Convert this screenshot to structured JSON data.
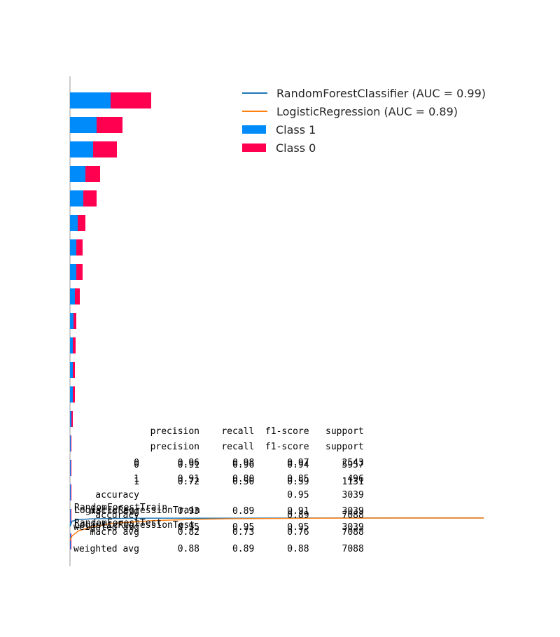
{
  "chart_data": [
    {
      "type": "bar",
      "orientation": "horizontal",
      "stacked": true,
      "series": [
        {
          "name": "Class 1",
          "color": "#008bfb",
          "values": [
            5.8,
            3.8,
            3.3,
            2.2,
            1.9,
            1.1,
            0.9,
            0.9,
            0.7,
            0.5,
            0.4,
            0.4,
            0.4,
            0.2,
            0.1,
            0.1,
            0.1,
            0.1,
            0.1
          ]
        },
        {
          "name": "Class 0",
          "color": "#ff0051",
          "values": [
            5.8,
            3.7,
            3.4,
            2.1,
            1.9,
            1.1,
            0.9,
            0.9,
            0.7,
            0.4,
            0.4,
            0.3,
            0.3,
            0.2,
            0.1,
            0.1,
            0.1,
            0.1,
            0.1
          ]
        }
      ]
    },
    {
      "type": "line",
      "series": [
        {
          "name": "RandomForestClassifier (AUC = 0.99)",
          "color": "#1f77b4",
          "x": [
            0,
            0.005,
            0.02,
            0.05,
            0.1,
            0.2,
            0.4,
            0.6,
            0.8,
            1.0
          ],
          "y": [
            0.62,
            0.86,
            0.93,
            0.96,
            0.98,
            0.99,
            0.995,
            1.0,
            1.0,
            1.0
          ]
        },
        {
          "name": "LogisticRegression (AUC = 0.89)",
          "color": "#ff7f0e",
          "x": [
            0,
            0.005,
            0.02,
            0.05,
            0.1,
            0.2,
            0.3,
            0.4,
            0.6,
            0.8,
            1.0
          ],
          "y": [
            0.0,
            0.2,
            0.42,
            0.6,
            0.75,
            0.88,
            0.94,
            0.97,
            0.99,
            1.0,
            1.0
          ]
        }
      ]
    }
  ],
  "legend": {
    "items": [
      {
        "kind": "line",
        "label": "RandomForestClassifier (AUC = 0.99)",
        "color": "#1f77b4"
      },
      {
        "kind": "line",
        "label": "LogisticRegression (AUC = 0.89)",
        "color": "#ff7f0e"
      },
      {
        "kind": "patch",
        "label": "Class 1",
        "color": "#008bfb"
      },
      {
        "kind": "patch",
        "label": "Class 0",
        "color": "#ff0051"
      }
    ]
  },
  "reports": {
    "report_a": "              precision    recall  f1-score   support\n\n           0       0.91      0.96      0.94      5957\n           1       0.72      0.50      0.59      1131\n\n    accuracy                           0.89      7088\n   macro avg       0.82      0.73      0.76      7088\nweighted avg       0.88      0.89      0.88      7088",
    "report_b": "              precision    recall  f1-score   support\n           0       0.96      0.98      0.97      2543\n           1       0.91      0.80      0.85       496\n    accuracy                           0.95      3039\n   macro avg       0.93      0.89      0.91      3039\nweighted avg       0.95      0.95      0.95      3039"
  },
  "overlay_labels": {
    "train": "RandomForestTrain",
    "train2": "LogisticRegressionTrain",
    "test": "RandomForestTest",
    "test2": "LogisticRegressionTest"
  }
}
